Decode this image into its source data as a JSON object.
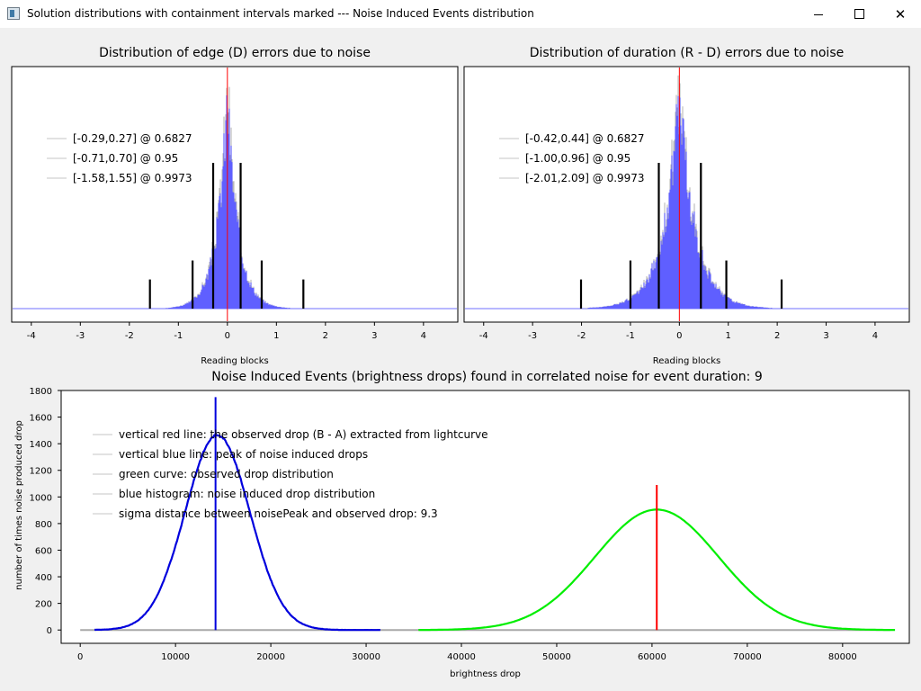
{
  "window": {
    "title": "Solution distributions with containment intervals marked --- Noise Induced Events distribution",
    "minimize": "—",
    "maximize": "☐",
    "close": "✕"
  },
  "chart_data": [
    {
      "type": "bar",
      "title": "Distribution of edge (D) errors due to noise",
      "xlabel": "Reading blocks",
      "ylabel": "",
      "xlim": [
        -4.4,
        4.7
      ],
      "xticks": [
        -4,
        -3,
        -2,
        -1,
        0,
        1,
        2,
        3,
        4
      ],
      "distribution": {
        "center": 0.0,
        "scale": 0.22,
        "color": "#5f5fff",
        "outline_color": "#b8b8b8"
      },
      "observed_line": {
        "x": 0.0,
        "color": "#ff0000"
      },
      "legend": [
        "[-0.29,0.27] @ 0.6827",
        "[-0.71,0.70] @ 0.95",
        "[-1.58,1.55] @ 0.9973"
      ],
      "intervals": [
        {
          "low": -0.29,
          "high": 0.27,
          "level": 0.6827,
          "marker_height": 1.0
        },
        {
          "low": -0.71,
          "high": 0.7,
          "level": 0.95,
          "marker_height": 0.33
        },
        {
          "low": -1.58,
          "high": 1.55,
          "level": 0.9973,
          "marker_height": 0.2
        }
      ]
    },
    {
      "type": "bar",
      "title": "Distribution of duration (R - D) errors due to noise",
      "xlabel": "Reading blocks",
      "ylabel": "",
      "xlim": [
        -4.4,
        4.7
      ],
      "xticks": [
        -4,
        -3,
        -2,
        -1,
        0,
        1,
        2,
        3,
        4
      ],
      "distribution": {
        "center": 0.0,
        "scale": 0.33,
        "color": "#5f5fff",
        "outline_color": "#b8b8b8"
      },
      "observed_line": {
        "x": 0.0,
        "color": "#ff0000"
      },
      "legend": [
        "[-0.42,0.44] @ 0.6827",
        "[-1.00,0.96] @ 0.95",
        "[-2.01,2.09] @ 0.9973"
      ],
      "intervals": [
        {
          "low": -0.42,
          "high": 0.44,
          "level": 0.6827,
          "marker_height": 1.0
        },
        {
          "low": -1.0,
          "high": 0.96,
          "level": 0.95,
          "marker_height": 0.33
        },
        {
          "low": -2.01,
          "high": 2.09,
          "level": 0.9973,
          "marker_height": 0.2
        }
      ]
    },
    {
      "type": "line",
      "title": "Noise Induced Events (brightness drops) found in correlated noise for event duration: 9",
      "xlabel": "brightness drop",
      "ylabel": "number of times noise produced drop",
      "xlim": [
        -2000,
        87000
      ],
      "ylim": [
        -100,
        1800
      ],
      "xticks": [
        0,
        10000,
        20000,
        30000,
        40000,
        50000,
        60000,
        70000,
        80000
      ],
      "yticks": [
        0,
        200,
        400,
        600,
        800,
        1000,
        1200,
        1400,
        1600,
        1800
      ],
      "legend": [
        "vertical red line: the observed drop (B - A) extracted from lightcurve",
        "vertical blue line: peak of noise induced drops",
        "green curve: observed drop distribution",
        "blue histogram: noise induced drop distribution",
        "sigma distance between noisePeak and observed drop: 9.3"
      ],
      "baseline": {
        "x": [
          0,
          85000
        ],
        "y": 0,
        "color": "#a8a8a8"
      },
      "series": [
        {
          "kind": "histogram",
          "color": "#0000dd",
          "mean": 14400,
          "sigma": 3400,
          "peak": 1465,
          "x_range": [
            1500,
            31500
          ]
        },
        {
          "kind": "curve",
          "color": "#00ee00",
          "mean": 60500,
          "sigma": 6500,
          "peak": 905,
          "x_range": [
            35500,
            85500
          ]
        }
      ],
      "vlines": [
        {
          "x": 14200,
          "y_top": 1750,
          "color": "#0000dd"
        },
        {
          "x": 60500,
          "y_top": 1090,
          "color": "#ff0000"
        }
      ]
    }
  ]
}
